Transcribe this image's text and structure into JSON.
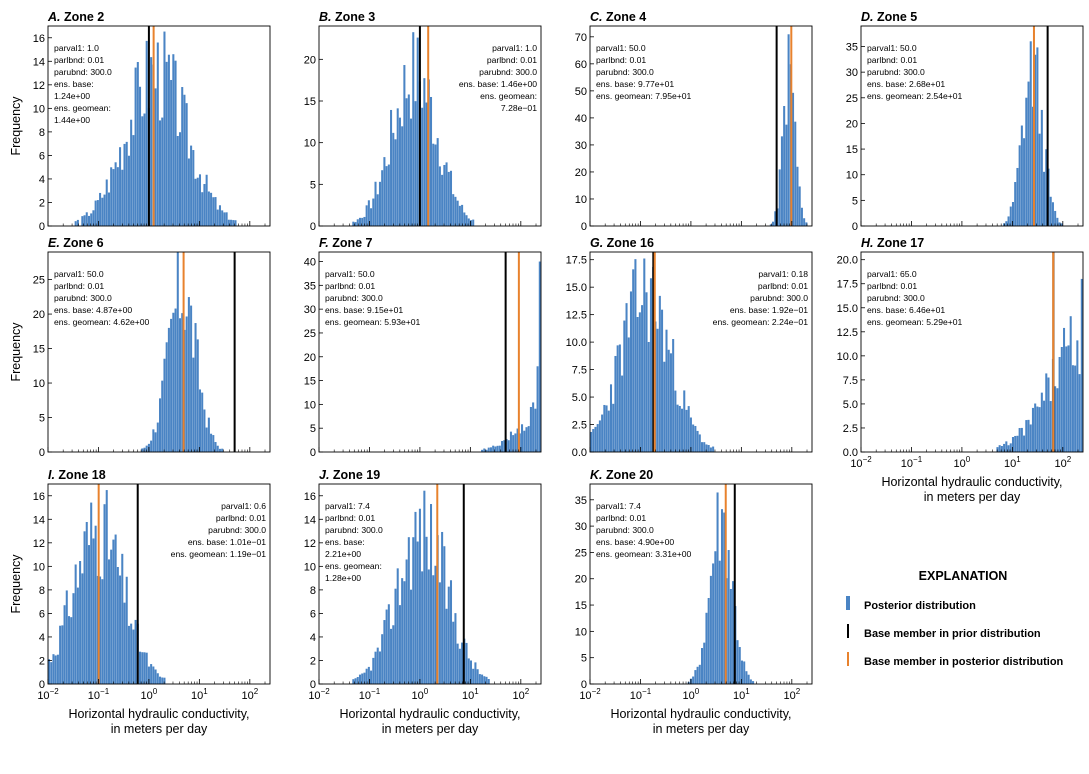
{
  "colors": {
    "posterior": "#4a84c4",
    "prior_line": "#000000",
    "posterior_line": "#e8822d"
  },
  "shared": {
    "ylabel": "Frequency",
    "xlabel_line1": "Horizontal hydraulic conductivity,",
    "xlabel_line2": "in meters per day",
    "xtick_labels": [
      "10",
      "10",
      "10",
      "10",
      "10"
    ],
    "xtick_exponents": [
      "−2",
      "−1",
      "0",
      "1",
      "2"
    ]
  },
  "legend": {
    "title": "EXPLANATION",
    "items": [
      {
        "label": "Posterior distribution",
        "icon": "posterior-swatch-icon"
      },
      {
        "label": "Base member in prior distribution",
        "icon": "prior-line-icon"
      },
      {
        "label": "Base member in posterior distribution",
        "icon": "posterior-line-icon"
      }
    ]
  },
  "chart_data": [
    {
      "letter": "A.",
      "zone": "Zone 2",
      "type": "bar",
      "xscale": "log",
      "xlim": [
        -2,
        2.4
      ],
      "ylim": [
        0,
        17
      ],
      "yticks": [
        0,
        2,
        4,
        6,
        8,
        10,
        12,
        14,
        16
      ],
      "ytick_labels": [
        "0",
        "2",
        "4",
        "6",
        "8",
        "10",
        "12",
        "14",
        "16"
      ],
      "prior_base": 1.0,
      "posterior_base": 1.24,
      "annotation_align": "left",
      "annotation": [
        "parval1: 1.0",
        "parlbnd: 0.01",
        "parubnd: 300.0",
        "ens. base:",
        "    1.24e+00",
        "ens. geomean:",
        "    1.44e+00"
      ],
      "bins": {
        "mu": 0.15,
        "sigma": 0.6,
        "peak": 16,
        "seed": 3
      }
    },
    {
      "letter": "B.",
      "zone": "Zone 3",
      "type": "bar",
      "xscale": "log",
      "xlim": [
        -2,
        2.4
      ],
      "ylim": [
        0,
        24
      ],
      "yticks": [
        0,
        5,
        10,
        15,
        20
      ],
      "ytick_labels": [
        "0",
        "5",
        "10",
        "15",
        "20"
      ],
      "prior_base": 1.0,
      "posterior_base": 1.46,
      "annotation_align": "right",
      "annotation": [
        "parval1: 1.0",
        "parlbnd: 0.01",
        "parubnd: 300.0",
        "ens. base: 1.46e+00",
        "ens. geomean:",
        "7.28e−01"
      ],
      "bins": {
        "mu": -0.1,
        "sigma": 0.45,
        "peak": 22,
        "seed": 7
      }
    },
    {
      "letter": "C.",
      "zone": "Zone 4",
      "type": "bar",
      "xscale": "log",
      "xlim": [
        -2,
        2.4
      ],
      "ylim": [
        0,
        74
      ],
      "yticks": [
        0,
        10,
        20,
        30,
        40,
        50,
        60,
        70
      ],
      "ytick_labels": [
        "0",
        "10",
        "20",
        "30",
        "40",
        "50",
        "60",
        "70"
      ],
      "prior_base": 50.0,
      "posterior_base": 97.7,
      "annotation_align": "left",
      "annotation": [
        "parval1: 50.0",
        "parlbnd: 0.01",
        "parubnd: 300.0",
        "ens. base: 9.77e+01",
        "ens. geomean: 7.95e+01"
      ],
      "bins": {
        "mu": 1.95,
        "sigma": 0.12,
        "peak": 70,
        "seed": 11
      }
    },
    {
      "letter": "D.",
      "zone": "Zone 5",
      "type": "bar",
      "xscale": "log",
      "xlim": [
        -2,
        2.4
      ],
      "ylim": [
        0,
        39
      ],
      "yticks": [
        0,
        5,
        10,
        15,
        20,
        25,
        30,
        35
      ],
      "ytick_labels": [
        "0",
        "5",
        "10",
        "15",
        "20",
        "25",
        "30",
        "35"
      ],
      "prior_base": 50.0,
      "posterior_base": 26.8,
      "annotation_align": "left",
      "annotation": [
        "parval1: 50.0",
        "parlbnd: 0.01",
        "parubnd: 300.0",
        "ens. base: 2.68e+01",
        "ens. geomean: 2.54e+01"
      ],
      "bins": {
        "mu": 1.4,
        "sigma": 0.2,
        "peak": 37,
        "seed": 13
      }
    },
    {
      "letter": "E.",
      "zone": "Zone 6",
      "type": "bar",
      "xscale": "log",
      "xlim": [
        -2,
        2.4
      ],
      "ylim": [
        0,
        29
      ],
      "yticks": [
        0,
        5,
        10,
        15,
        20,
        25
      ],
      "ytick_labels": [
        "0",
        "5",
        "10",
        "15",
        "20",
        "25"
      ],
      "prior_base": 50.0,
      "posterior_base": 4.87,
      "annotation_align": "left",
      "annotation": [
        "parval1: 50.0",
        "parlbnd: 0.01",
        "parubnd: 300.0",
        "ens. base: 4.87e+00",
        "ens. geomean: 4.62e+00"
      ],
      "bins": {
        "mu": 0.66,
        "sigma": 0.28,
        "peak": 28,
        "seed": 17
      }
    },
    {
      "letter": "F.",
      "zone": "Zone 7",
      "type": "bar",
      "xscale": "log",
      "xlim": [
        -2,
        2.4
      ],
      "ylim": [
        0,
        42
      ],
      "yticks": [
        0,
        5,
        10,
        15,
        20,
        25,
        30,
        35,
        40
      ],
      "ytick_labels": [
        "0",
        "5",
        "10",
        "15",
        "20",
        "25",
        "30",
        "35",
        "40"
      ],
      "prior_base": 50.0,
      "posterior_base": 91.5,
      "annotation_align": "left",
      "annotation": [
        "parval1: 50.0",
        "parlbnd: 0.01",
        "parubnd: 300.0",
        "ens. base: 9.15e+01",
        "ens. geomean: 5.93e+01"
      ],
      "bins": {
        "mu": 2.6,
        "sigma": 0.55,
        "peak": 12,
        "seed": 19,
        "edgeSpike": 40
      }
    },
    {
      "letter": "G.",
      "zone": "Zone 16",
      "type": "bar",
      "xscale": "log",
      "xlim": [
        -2,
        2.4
      ],
      "ylim": [
        0,
        18.2
      ],
      "yticks": [
        0,
        2.5,
        5,
        7.5,
        10,
        12.5,
        15,
        17.5
      ],
      "ytick_labels": [
        "0.0",
        "2.5",
        "5.0",
        "7.5",
        "10.0",
        "12.5",
        "15.0",
        "17.5"
      ],
      "prior_base": 0.18,
      "posterior_base": 0.192,
      "annotation_align": "right",
      "annotation": [
        "parval1: 0.18",
        "parlbnd: 0.01",
        "parubnd: 300.0",
        "ens. base: 1.92e−01",
        "ens. geomean: 2.24e−01"
      ],
      "bins": {
        "mu": -0.9,
        "sigma": 0.5,
        "peak": 17.5,
        "seed": 23
      }
    },
    {
      "letter": "H.",
      "zone": "Zone 17",
      "type": "bar",
      "xscale": "log",
      "xlim": [
        -2,
        2.4
      ],
      "ylim": [
        0,
        20.8
      ],
      "yticks": [
        0,
        2.5,
        5,
        7.5,
        10,
        12.5,
        15,
        17.5,
        20
      ],
      "ytick_labels": [
        "0.0",
        "2.5",
        "5.0",
        "7.5",
        "10.0",
        "12.5",
        "15.0",
        "17.5",
        "20.0"
      ],
      "prior_base": 65.0,
      "posterior_base": 64.6,
      "annotation_align": "left",
      "annotation": [
        "parval1: 65.0",
        "parlbnd: 0.01",
        "parubnd: 300.0",
        "ens. base: 6.46e+01",
        "ens. geomean: 5.29e+01"
      ],
      "bins": {
        "mu": 2.5,
        "sigma": 0.7,
        "peak": 15,
        "seed": 29,
        "edgeSpike": 18
      }
    },
    {
      "letter": "I.",
      "zone": "Zone 18",
      "type": "bar",
      "xscale": "log",
      "xlim": [
        -2,
        2.4
      ],
      "ylim": [
        0,
        17
      ],
      "yticks": [
        0,
        2,
        4,
        6,
        8,
        10,
        12,
        14,
        16
      ],
      "ytick_labels": [
        "0",
        "2",
        "4",
        "6",
        "8",
        "10",
        "12",
        "14",
        "16"
      ],
      "prior_base": 0.6,
      "posterior_base": 0.101,
      "annotation_align": "right",
      "annotation": [
        "parval1: 0.6",
        "parlbnd: 0.01",
        "parubnd: 300.0",
        "ens. base: 1.01e−01",
        "ens. geomean: 1.19e−01"
      ],
      "bins": {
        "mu": -1.0,
        "sigma": 0.5,
        "peak": 16,
        "seed": 31
      }
    },
    {
      "letter": "J.",
      "zone": "Zone 19",
      "type": "bar",
      "xscale": "log",
      "xlim": [
        -2,
        2.4
      ],
      "ylim": [
        0,
        17
      ],
      "yticks": [
        0,
        2,
        4,
        6,
        8,
        10,
        12,
        14,
        16
      ],
      "ytick_labels": [
        "0",
        "2",
        "4",
        "6",
        "8",
        "10",
        "12",
        "14",
        "16"
      ],
      "prior_base": 7.4,
      "posterior_base": 2.21,
      "annotation_align": "left",
      "annotation": [
        "parval1: 7.4",
        "parlbnd: 0.01",
        "parubnd: 300.0",
        "ens. base:",
        "    2.21e+00",
        "ens. geomean:",
        "    1.28e+00"
      ],
      "bins": {
        "mu": 0.05,
        "sigma": 0.5,
        "peak": 16,
        "seed": 37
      }
    },
    {
      "letter": "K.",
      "zone": "Zone 20",
      "type": "bar",
      "xscale": "log",
      "xlim": [
        -2,
        2.4
      ],
      "ylim": [
        0,
        38
      ],
      "yticks": [
        0,
        5,
        10,
        15,
        20,
        25,
        30,
        35
      ],
      "ytick_labels": [
        "0",
        "5",
        "10",
        "15",
        "20",
        "25",
        "30",
        "35"
      ],
      "prior_base": 7.4,
      "posterior_base": 4.9,
      "annotation_align": "left",
      "annotation": [
        "parval1: 7.4",
        "parlbnd: 0.01",
        "parubnd: 300.0",
        "ens. base: 4.90e+00",
        "ens. geomean: 3.31e+00"
      ],
      "bins": {
        "mu": 0.6,
        "sigma": 0.22,
        "peak": 37,
        "seed": 41
      }
    }
  ]
}
